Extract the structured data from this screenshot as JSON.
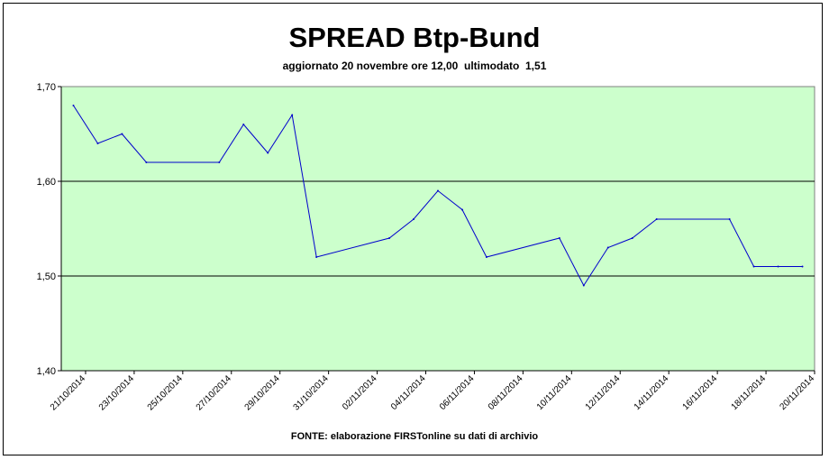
{
  "chart_data": {
    "type": "line",
    "title": "SPREAD Btp-Bund",
    "subtitle": "aggiornato 20 novembre ore 12,00  ultimodato  1,51",
    "source": "FONTE: elaborazione FIRSTonline su dati di archivio",
    "xlabel": "",
    "ylabel": "",
    "ylim": [
      1.4,
      1.7
    ],
    "y_ticks": [
      "1,40",
      "1,50",
      "1,60",
      "1,70"
    ],
    "y_tick_values": [
      1.4,
      1.5,
      1.6,
      1.7
    ],
    "grid": "horizontal",
    "x_tick_labels": [
      "21/10/2014",
      "23/10/2014",
      "25/10/2014",
      "27/10/2014",
      "29/10/2014",
      "31/10/2014",
      "02/11/2014",
      "04/11/2014",
      "06/11/2014",
      "08/11/2014",
      "10/11/2014",
      "12/11/2014",
      "14/11/2014",
      "16/11/2014",
      "18/11/2014",
      "20/11/2014"
    ],
    "x": [
      "21/10/2014",
      "22/10/2014",
      "23/10/2014",
      "24/10/2014",
      "27/10/2014",
      "28/10/2014",
      "29/10/2014",
      "30/10/2014",
      "31/10/2014",
      "03/11/2014",
      "04/11/2014",
      "05/11/2014",
      "06/11/2014",
      "07/11/2014",
      "10/11/2014",
      "11/11/2014",
      "12/11/2014",
      "13/11/2014",
      "14/11/2014",
      "17/11/2014",
      "18/11/2014",
      "19/11/2014",
      "20/11/2014"
    ],
    "x_index": [
      0,
      1,
      2,
      3,
      6,
      7,
      8,
      9,
      10,
      13,
      14,
      15,
      16,
      17,
      20,
      21,
      22,
      23,
      24,
      27,
      28,
      29,
      30
    ],
    "series": [
      {
        "values": [
          1.68,
          1.64,
          1.65,
          1.62,
          1.62,
          1.66,
          1.63,
          1.67,
          1.52,
          1.54,
          1.56,
          1.59,
          1.57,
          1.52,
          1.54,
          1.49,
          1.53,
          1.54,
          1.56,
          1.56,
          1.51,
          1.51,
          1.51
        ],
        "color": "#0000cc"
      }
    ],
    "plot_background": "#ccffcc"
  }
}
